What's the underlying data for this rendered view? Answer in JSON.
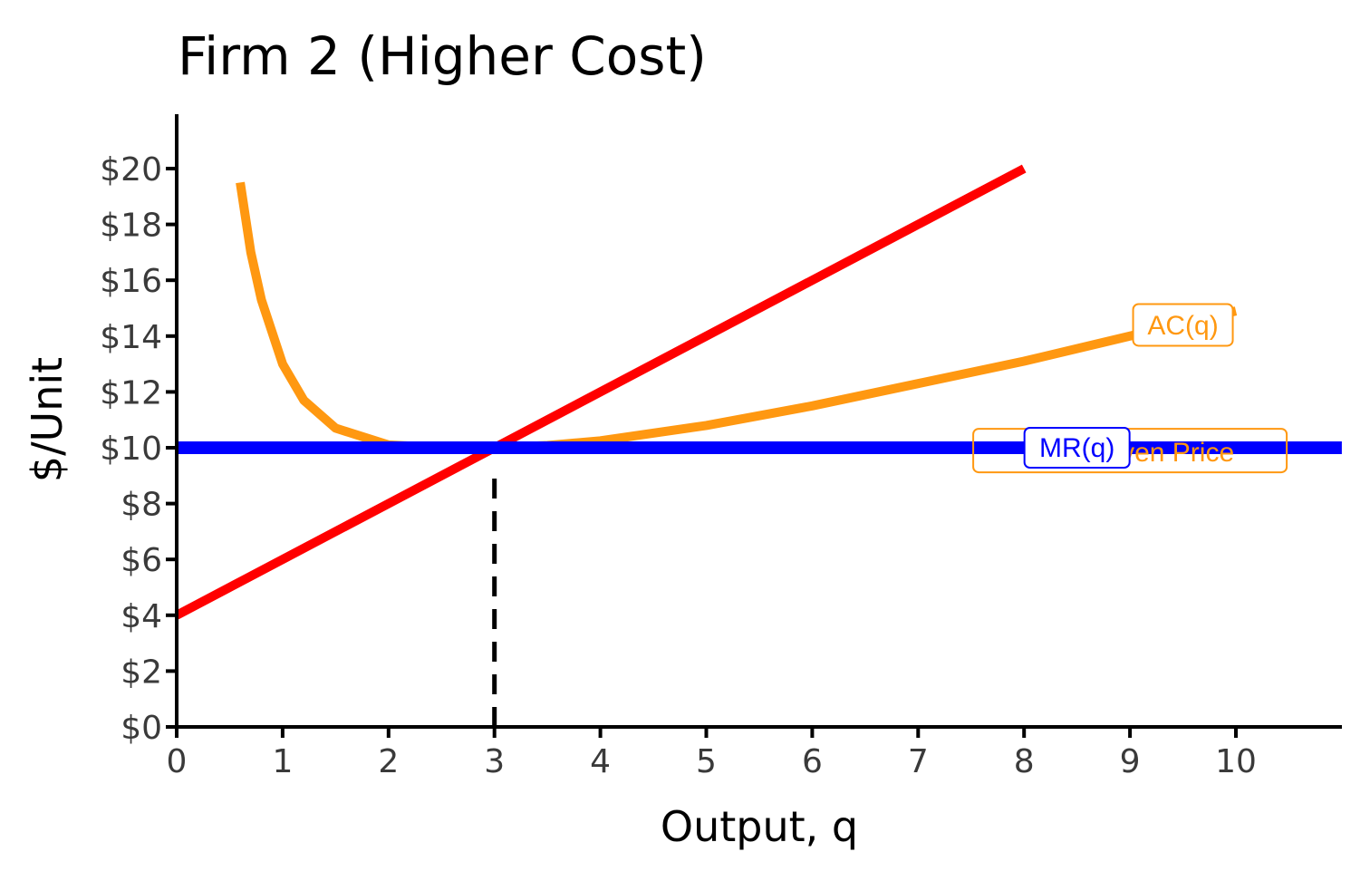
{
  "chart_data": {
    "type": "line",
    "title": "Firm 2 (Higher Cost)",
    "xlabel": "Output, q",
    "ylabel": "$/Unit",
    "xlim": [
      0,
      11
    ],
    "ylim": [
      0,
      22
    ],
    "x_ticks": [
      0,
      1,
      2,
      3,
      4,
      5,
      6,
      7,
      8,
      9,
      10
    ],
    "x_tick_labels": [
      "0",
      "1",
      "2",
      "3",
      "4",
      "5",
      "6",
      "7",
      "8",
      "9",
      "10"
    ],
    "y_ticks": [
      0,
      2,
      4,
      6,
      8,
      10,
      12,
      14,
      16,
      18,
      20
    ],
    "y_tick_labels": [
      "$0",
      "$2",
      "$4",
      "$6",
      "$8",
      "$10",
      "$12",
      "$14",
      "$16",
      "$18",
      "$20"
    ],
    "grid": false,
    "series": [
      {
        "name": "AC(q)",
        "color": "#ff9811",
        "x": [
          0.6,
          0.7,
          0.8,
          1.0,
          1.2,
          1.5,
          2.0,
          2.5,
          3.0,
          3.5,
          4.0,
          5.0,
          6.0,
          7.0,
          8.0,
          9.0,
          10.0
        ],
        "y": [
          19.5,
          17.0,
          15.3,
          13.0,
          11.7,
          10.7,
          10.1,
          10.0,
          10.0,
          10.08,
          10.25,
          10.8,
          11.5,
          12.3,
          13.1,
          14.0,
          14.9
        ]
      },
      {
        "name": "",
        "color": "#ff0000",
        "x": [
          0,
          8
        ],
        "y": [
          4,
          20
        ]
      },
      {
        "name": "MR(q)",
        "color": "#0000ff",
        "x": [
          0,
          11
        ],
        "y": [
          10,
          10
        ]
      }
    ],
    "reference_lines": [
      {
        "x": 3,
        "from_y": 0,
        "to_y": 10,
        "style": "dashed",
        "color": "#000000"
      }
    ],
    "annotations": [
      {
        "text": "Break-even Price",
        "x": 9.0,
        "y": 9.9,
        "color": "#ff9811"
      },
      {
        "text": "MR(q)",
        "x": 8.5,
        "y": 10.0,
        "color": "#0000ff"
      },
      {
        "text": "AC(q)",
        "x": 9.5,
        "y": 14.4,
        "color": "#ff9811"
      }
    ]
  }
}
